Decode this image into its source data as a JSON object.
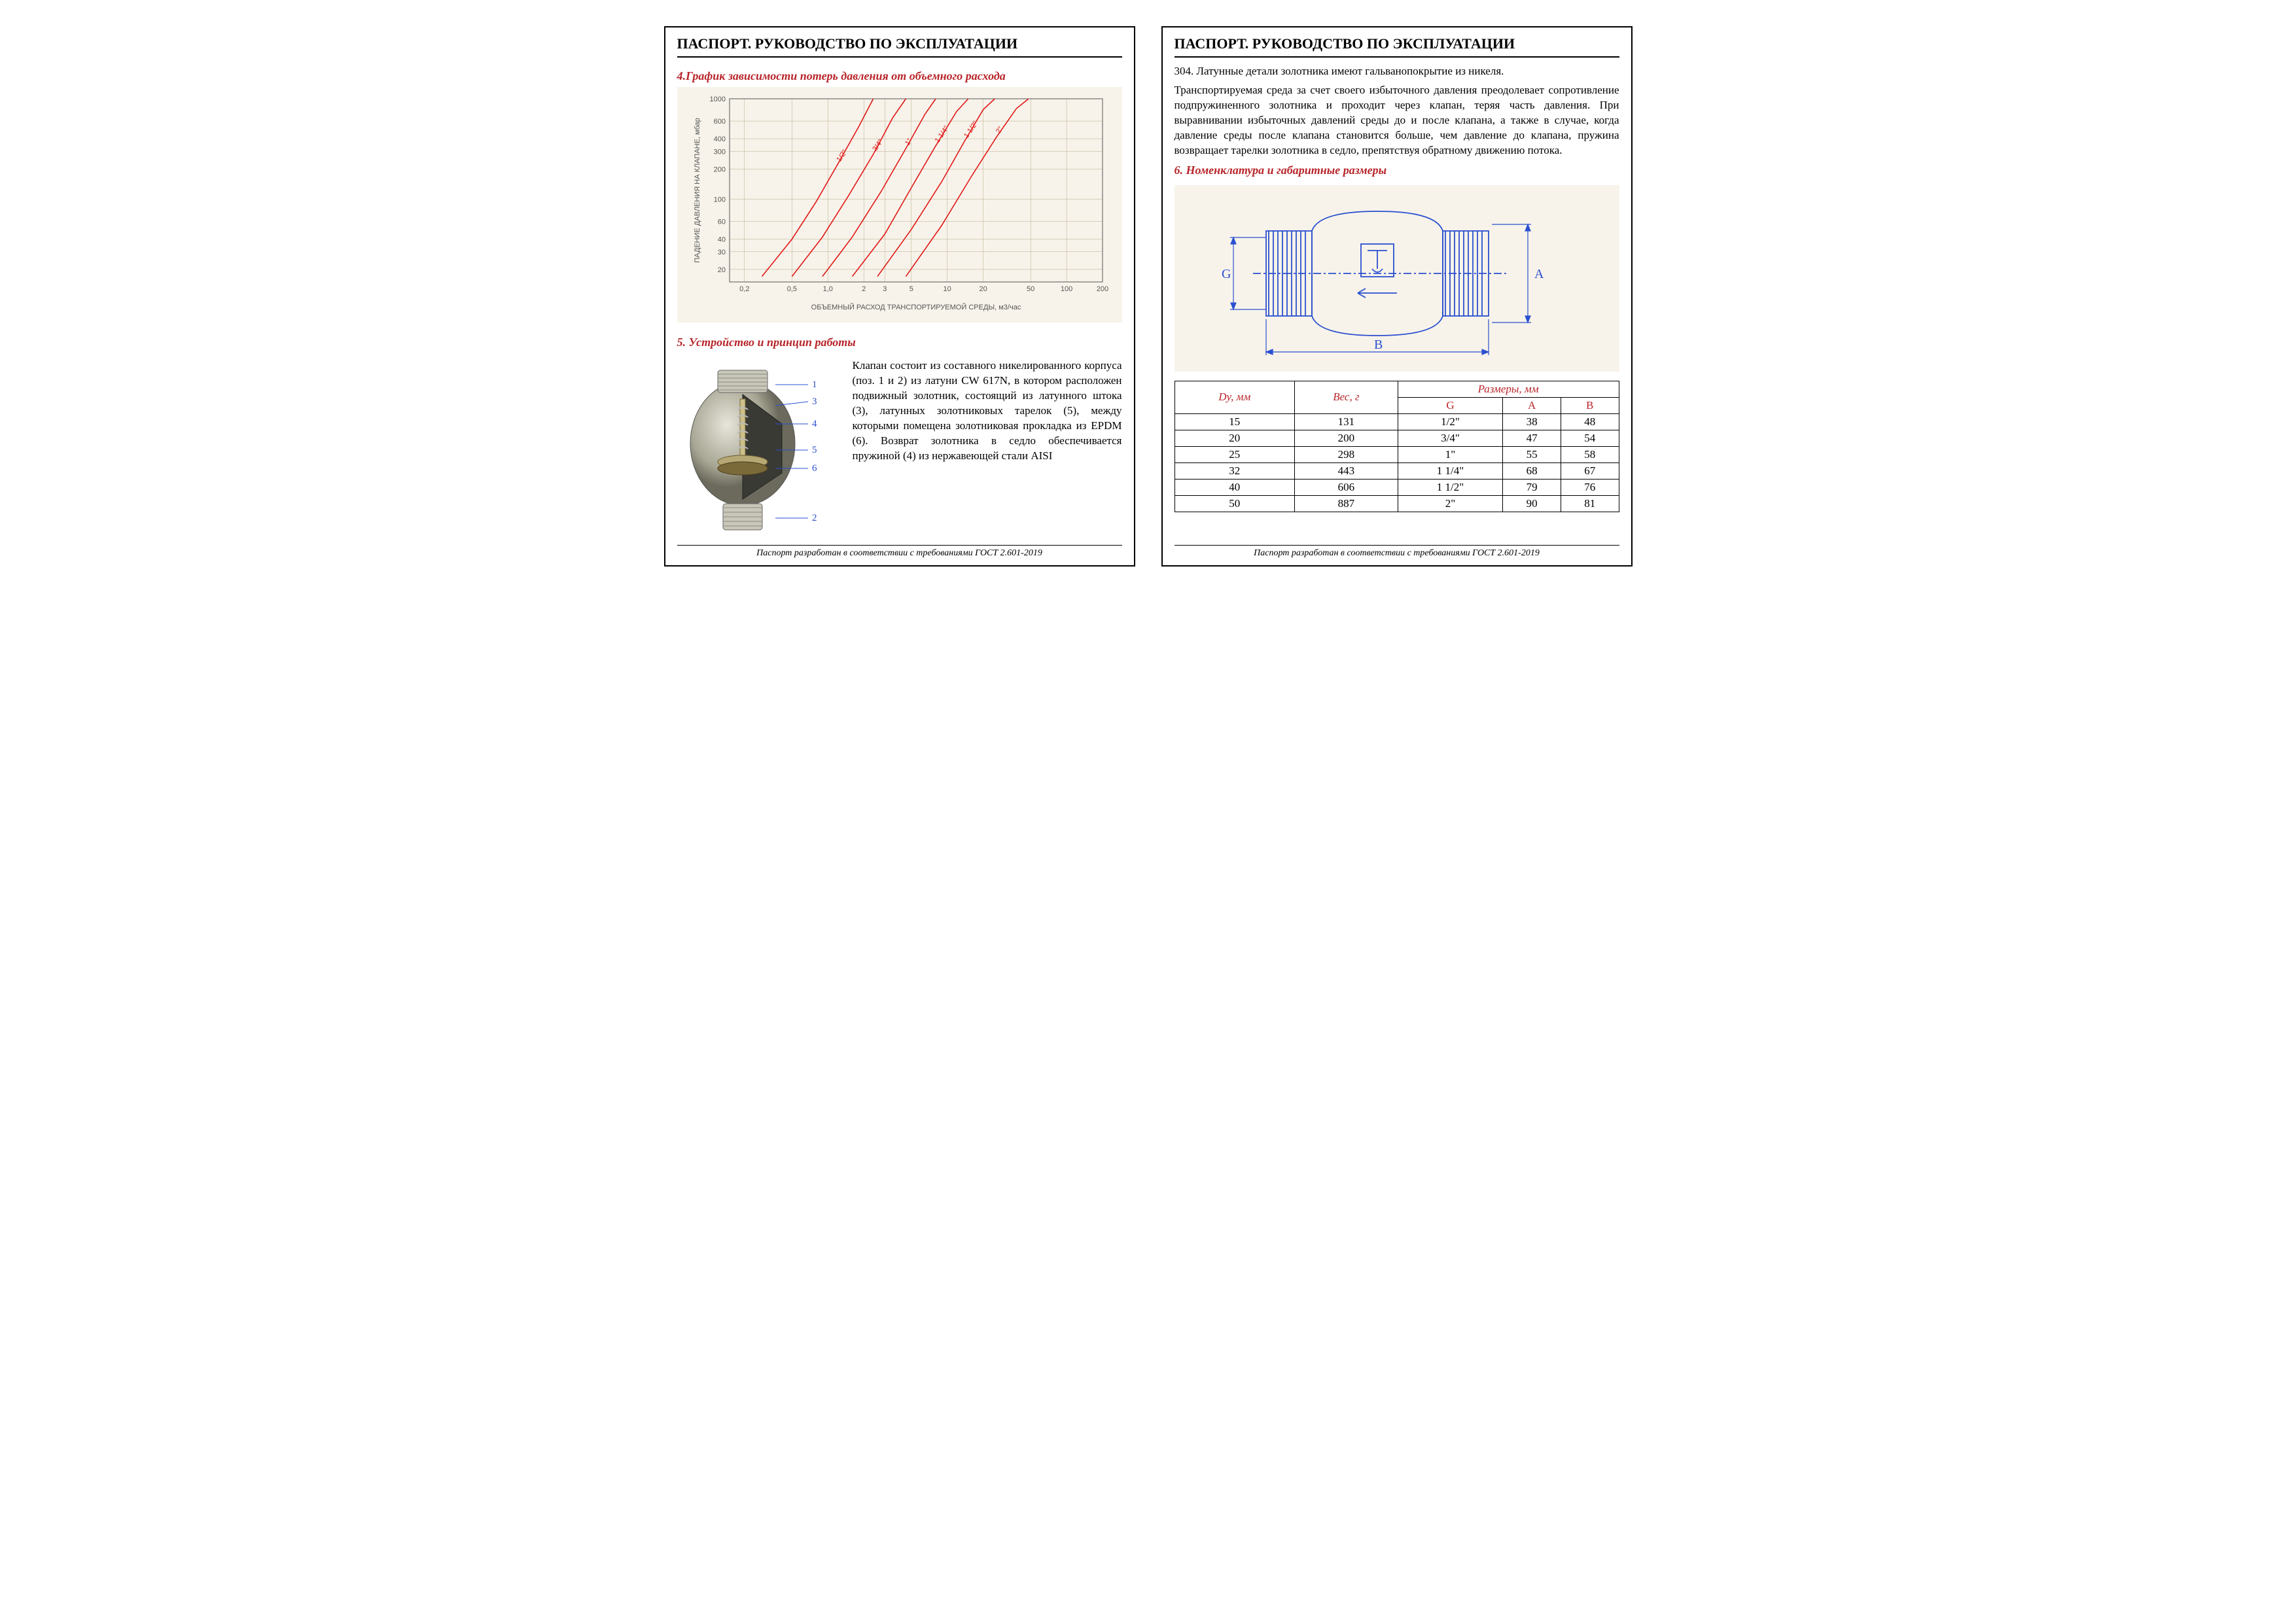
{
  "page_title": "ПАСПОРТ. РУКОВОДСТВО ПО ЭКСПЛУАТАЦИИ",
  "footer": "Паспорт разработан в соответствии с требованиями ГОСТ 2.601-2019",
  "sec4_title": "4.График  зависимости потерь давления от  объемного расхода",
  "sec5_title": "5.  Устройство и принцип работы",
  "sec6_title": "6. Номенклатура и габаритные размеры",
  "chart": {
    "type": "line-loglog",
    "x_label": "ОБЪЕМНЫЙ РАСХОД ТРАНСПОРТИРУЕМОЙ СРЕДЫ, м3/час",
    "y_label": "ПАДЕНИЕ ДАВЛЕНИЯ НА КЛАПАНЕ, мбар",
    "x_ticks": [
      "0,2",
      "0,5",
      "1,0",
      "2",
      "3",
      "5",
      "10",
      "20",
      "50",
      "100",
      "200"
    ],
    "x_vals": [
      0.2,
      0.5,
      1.0,
      2,
      3,
      5,
      10,
      20,
      50,
      100,
      200
    ],
    "y_ticks": [
      "20",
      "30",
      "40",
      "60",
      "100",
      "200",
      "300",
      "400",
      "600",
      "1000"
    ],
    "y_vals": [
      20,
      30,
      40,
      60,
      100,
      200,
      300,
      400,
      600,
      1000
    ],
    "y_min": 15,
    "y_max": 1000,
    "x_min": 0.15,
    "x_max": 200,
    "grid_color": "#b8a98a",
    "bg_color": "#f7f3ea",
    "axis_color": "#555555",
    "curve_color": "#e11818",
    "label_fontsize": 11,
    "curves": [
      {
        "label": "1/2\"",
        "pts": [
          [
            0.28,
            17
          ],
          [
            0.5,
            40
          ],
          [
            0.8,
            95
          ],
          [
            1.2,
            220
          ],
          [
            1.8,
            520
          ],
          [
            2.4,
            1000
          ]
        ]
      },
      {
        "label": "3/4\"",
        "pts": [
          [
            0.5,
            17
          ],
          [
            0.9,
            42
          ],
          [
            1.5,
            110
          ],
          [
            2.4,
            280
          ],
          [
            3.5,
            650
          ],
          [
            4.5,
            1000
          ]
        ]
      },
      {
        "label": "1\"",
        "pts": [
          [
            0.9,
            17
          ],
          [
            1.6,
            42
          ],
          [
            2.8,
            120
          ],
          [
            4.5,
            320
          ],
          [
            6.5,
            700
          ],
          [
            8,
            1000
          ]
        ]
      },
      {
        "label": "1 1/4\"",
        "pts": [
          [
            1.6,
            17
          ],
          [
            3,
            45
          ],
          [
            5,
            130
          ],
          [
            8,
            340
          ],
          [
            12,
            750
          ],
          [
            15,
            1000
          ]
        ]
      },
      {
        "label": "1 1/2\"",
        "pts": [
          [
            2.6,
            17
          ],
          [
            5,
            50
          ],
          [
            9,
            150
          ],
          [
            14,
            380
          ],
          [
            20,
            780
          ],
          [
            25,
            1000
          ]
        ]
      },
      {
        "label": "2\"",
        "pts": [
          [
            4.5,
            17
          ],
          [
            9,
            55
          ],
          [
            16,
            170
          ],
          [
            26,
            420
          ],
          [
            38,
            800
          ],
          [
            48,
            1000
          ]
        ]
      }
    ]
  },
  "device_labels": [
    "1",
    "3",
    "4",
    "5",
    "6",
    "2"
  ],
  "sec5_text": "Клапан состоит из составного никелированного корпуса (поз. 1 и 2)  из латуни CW 617N, в котором расположен подвижный золотник, состоящий из латунного штока (3), латунных золотниковых тарелок (5), между которыми помещена золотниковая прокладка из EPDM (6).  Возврат золотника в седло обеспечивается пружиной (4)  из нержавеющей стали AISI",
  "right_intro": "304. Латунные детали золотника  имеют гальванопокрытие из никеля.",
  "right_para": "Транспортируемая среда за счет своего избыточного давления преодолевает сопротивление подпружиненного золотника  и проходит через клапан, теряя часть давления. При выравнивании избыточных давлений среды до и после клапана, а также в случае, когда давление среды после клапана становится больше, чем давление до клапана, пружина возвращает тарелки золотника в седло, препятствуя обратному движению потока.",
  "dim_drawing": {
    "color": "#2a4fd0",
    "labels": {
      "G": "G",
      "A": "A",
      "B": "B"
    }
  },
  "table": {
    "headers": {
      "du": "Dу, мм",
      "weight": "Вес, г",
      "dims": "Размеры, мм",
      "G": "G",
      "A": "A",
      "B": "B"
    },
    "rows": [
      {
        "du": "15",
        "w": "131",
        "g": "1/2\"",
        "a": "38",
        "b": "48"
      },
      {
        "du": "20",
        "w": "200",
        "g": "3/4\"",
        "a": "47",
        "b": "54"
      },
      {
        "du": "25",
        "w": "298",
        "g": "1\"",
        "a": "55",
        "b": "58"
      },
      {
        "du": "32",
        "w": "443",
        "g": "1 1/4\"",
        "a": "68",
        "b": "67"
      },
      {
        "du": "40",
        "w": "606",
        "g": "1 1/2\"",
        "a": "79",
        "b": "76"
      },
      {
        "du": "50",
        "w": "887",
        "g": "2\"",
        "a": "90",
        "b": "81"
      }
    ]
  }
}
